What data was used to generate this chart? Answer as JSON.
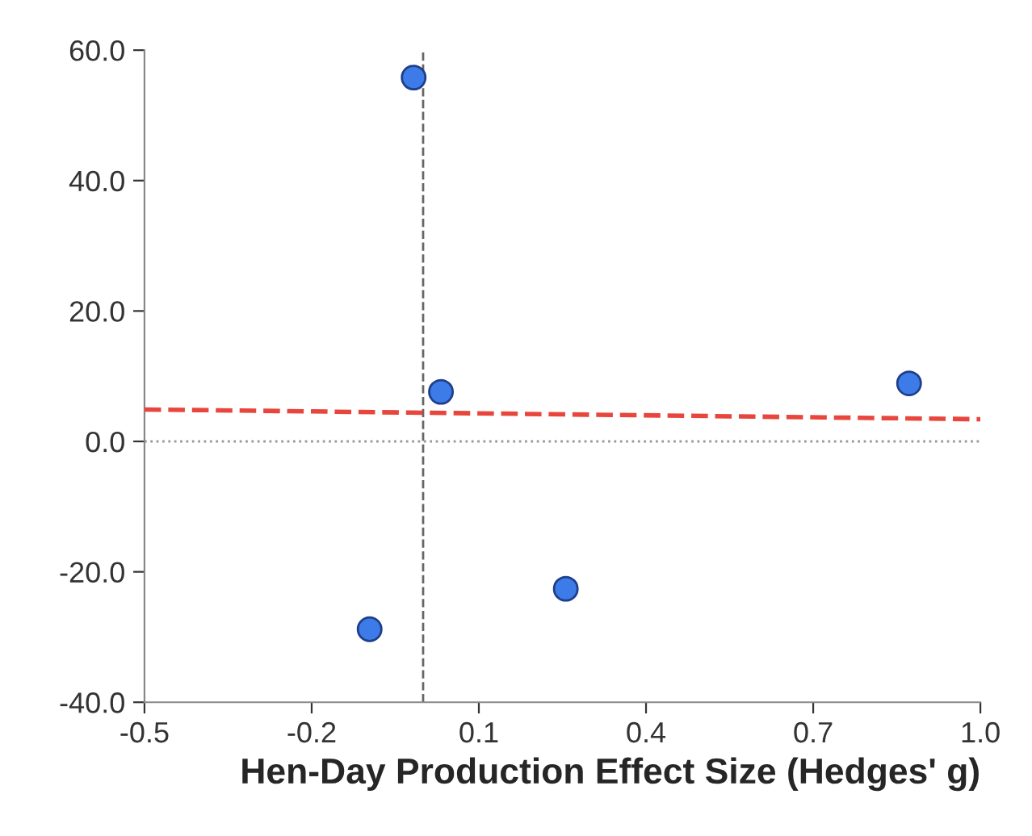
{
  "chart_data": {
    "type": "scatter",
    "xlabel": "Hen-Day Production Effect Size (Hedges' g)",
    "x": [
      -0.017,
      0.032,
      0.872,
      -0.096,
      0.256
    ],
    "series": [
      {
        "color": "#3d7be8",
        "values": [
          55.8,
          7.6,
          8.9,
          -28.8,
          -22.6
        ],
        "marker": "circle"
      },
      {
        "type": "line",
        "x": [
          -0.5,
          1.0
        ],
        "values": [
          4.9,
          3.4
        ],
        "color": "#e8463c",
        "line_style": "dashed",
        "marker": "none"
      }
    ],
    "xlim": [
      -0.5,
      1.0
    ],
    "ylim": [
      -40,
      60
    ],
    "xticks": [
      {
        "value": -0.5,
        "label": "-0.5"
      },
      {
        "value": -0.2,
        "label": "-0.2"
      },
      {
        "value": 0.1,
        "label": "0.1"
      },
      {
        "value": 0.4,
        "label": "0.4"
      },
      {
        "value": 0.7,
        "label": "0.7"
      },
      {
        "value": 1.0,
        "label": "1.0"
      }
    ],
    "yticks": [
      {
        "value": -40,
        "label": "-40.0"
      },
      {
        "value": -20,
        "label": "-20.0"
      },
      {
        "value": 0,
        "label": "0.0"
      },
      {
        "value": 20,
        "label": "20.0"
      },
      {
        "value": 40,
        "label": "40.0"
      },
      {
        "value": 60,
        "label": "60.0"
      }
    ],
    "ref_lines": [
      {
        "axis": "x",
        "value": 0,
        "color": "#666666",
        "line_style": "dashed"
      },
      {
        "axis": "y",
        "value": 0,
        "color": "#9a9a9a",
        "line_style": "dotted"
      }
    ],
    "grid": false,
    "legend": false
  }
}
